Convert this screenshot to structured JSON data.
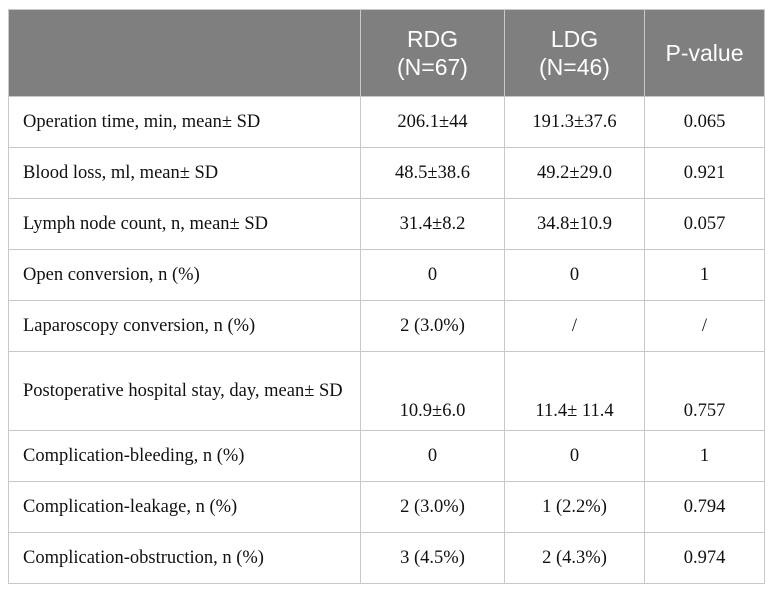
{
  "table": {
    "headers": [
      {
        "lines": [
          ""
        ]
      },
      {
        "lines": [
          "RDG",
          "(N=67)"
        ]
      },
      {
        "lines": [
          "LDG",
          "(N=46)"
        ]
      },
      {
        "lines": [
          "P-value"
        ]
      }
    ],
    "rows": [
      {
        "label": "Operation time, min, mean± SD",
        "rdg": "206.1±44",
        "ldg": "191.3±37.6",
        "p": "0.065"
      },
      {
        "label": "Blood loss, ml, mean± SD",
        "rdg": "48.5±38.6",
        "ldg": "49.2±29.0",
        "p": "0.921"
      },
      {
        "label": "Lymph node count, n, mean± SD",
        "rdg": "31.4±8.2",
        "ldg": "34.8±10.9",
        "p": "0.057"
      },
      {
        "label": "Open conversion, n (%)",
        "rdg": "0",
        "ldg": "0",
        "p": "1"
      },
      {
        "label": "Laparoscopy conversion, n (%)",
        "rdg": "2 (3.0%)",
        "ldg": "/",
        "p": "/"
      },
      {
        "label": "Postoperative hospital stay, day, mean± SD",
        "rdg": "10.9±6.0",
        "ldg": "11.4± 11.4",
        "p": "0.757"
      },
      {
        "label": "Complication-bleeding, n (%)",
        "rdg": "0",
        "ldg": "0",
        "p": "1"
      },
      {
        "label": "Complication-leakage, n (%)",
        "rdg": "2 (3.0%)",
        "ldg": "1 (2.2%)",
        "p": "0.794"
      },
      {
        "label": "Complication-obstruction, n (%)",
        "rdg": "3 (4.5%)",
        "ldg": "2 (4.3%)",
        "p": "0.974"
      }
    ]
  }
}
